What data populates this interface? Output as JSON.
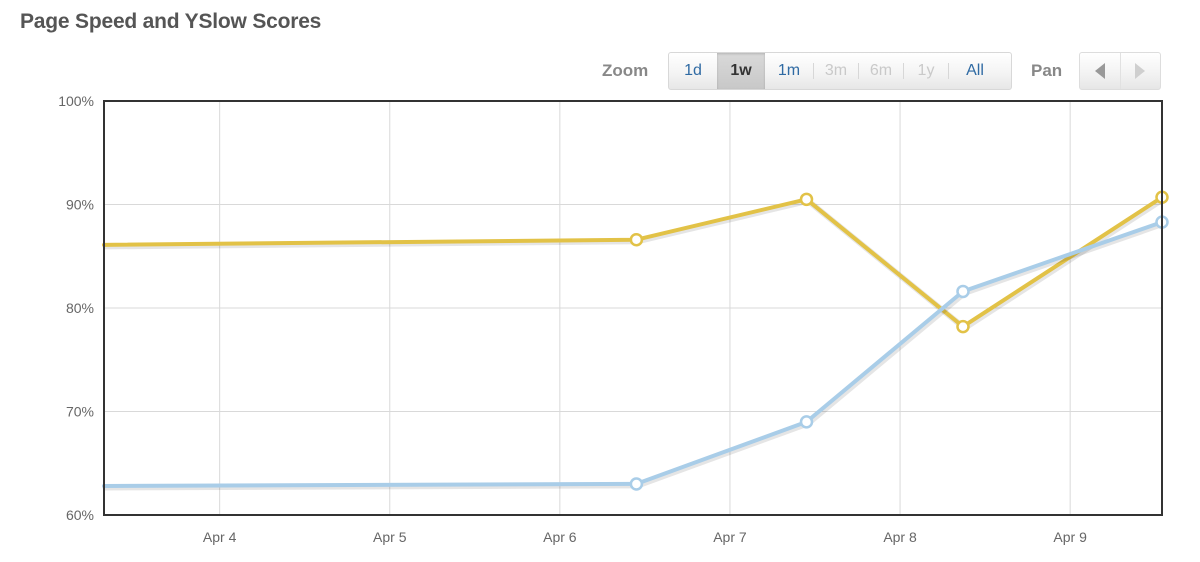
{
  "page": {
    "title": "Page Speed and YSlow Scores"
  },
  "toolbar": {
    "zoom_label": "Zoom",
    "zoom_options": [
      {
        "label": "1d",
        "state": "enabled"
      },
      {
        "label": "1w",
        "state": "active"
      },
      {
        "label": "1m",
        "state": "enabled"
      },
      {
        "label": "3m",
        "state": "disabled"
      },
      {
        "label": "6m",
        "state": "disabled"
      },
      {
        "label": "1y",
        "state": "disabled"
      },
      {
        "label": "All",
        "state": "enabled"
      }
    ],
    "pan_label": "Pan",
    "pan_left_icon": "chevron-left-icon",
    "pan_right_icon": "chevron-right-icon"
  },
  "chart_data": {
    "type": "line",
    "title": "Page Speed and YSlow Scores",
    "xlabel": "",
    "ylabel": "",
    "x_axis": {
      "min": 3.32,
      "max": 9.54,
      "ticks": [
        4,
        5,
        6,
        7,
        8,
        9
      ],
      "tick_labels": [
        "Apr 4",
        "Apr 5",
        "Apr 6",
        "Apr 7",
        "Apr 8",
        "Apr 9"
      ]
    },
    "y_axis": {
      "min": 60,
      "max": 100,
      "ticks": [
        60,
        70,
        80,
        90,
        100
      ],
      "tick_labels": [
        "60%",
        "70%",
        "80%",
        "90%",
        "100%"
      ]
    },
    "grid": true,
    "series": [
      {
        "color": "#e2c247",
        "marker_fill": "#ffffff",
        "points": [
          {
            "x": 3.32,
            "y": 86.1,
            "marker": false
          },
          {
            "x": 6.45,
            "y": 86.6,
            "marker": true
          },
          {
            "x": 7.45,
            "y": 90.5,
            "marker": true
          },
          {
            "x": 8.37,
            "y": 78.2,
            "marker": true
          },
          {
            "x": 9.54,
            "y": 90.7,
            "marker": true
          }
        ]
      },
      {
        "color": "#a9cde8",
        "marker_fill": "#ffffff",
        "points": [
          {
            "x": 3.32,
            "y": 62.8,
            "marker": false
          },
          {
            "x": 6.45,
            "y": 63.0,
            "marker": true
          },
          {
            "x": 7.45,
            "y": 69.0,
            "marker": true
          },
          {
            "x": 8.37,
            "y": 81.6,
            "marker": true
          },
          {
            "x": 9.54,
            "y": 88.3,
            "marker": true
          }
        ]
      }
    ]
  }
}
